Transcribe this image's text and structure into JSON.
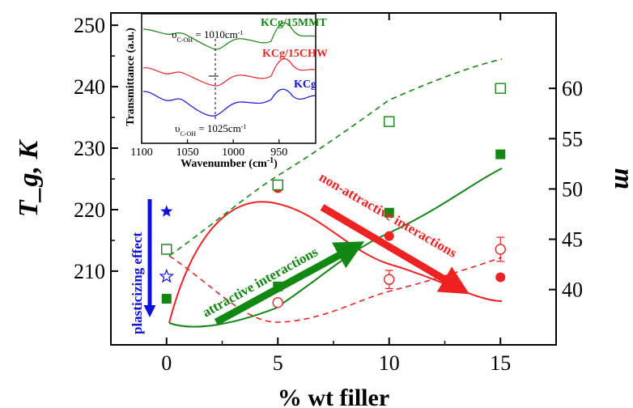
{
  "chart_data": {
    "type": "line",
    "xlabel": "% wt filler",
    "ylabel_left": "T_g, K",
    "ylabel_right": "m",
    "xlim": [
      -2.5,
      17.5
    ],
    "ylim_left": [
      198,
      252
    ],
    "ylim_right": [
      34.5,
      67.5
    ],
    "x_ticks": [
      0,
      5,
      10,
      15
    ],
    "y_ticks_left": [
      210,
      220,
      230,
      240,
      250
    ],
    "y_ticks_right": [
      40,
      45,
      50,
      55,
      60
    ],
    "colors": {
      "red": "#ee2222",
      "green": "#118811",
      "blue": "#1010dd"
    },
    "series": [
      {
        "axis": "left",
        "color": "red",
        "marker": "filled-circle",
        "x": [
          0,
          5,
          10,
          15
        ],
        "values": [
          205.5,
          223.5,
          215.7,
          209
        ]
      },
      {
        "axis": "left",
        "color": "green",
        "marker": "filled-square",
        "x": [
          0,
          5,
          10,
          15
        ],
        "values": [
          205.5,
          207.5,
          219.5,
          229
        ]
      },
      {
        "axis": "right",
        "color": "red",
        "marker": "open-circle",
        "x": [
          0,
          5,
          10,
          15
        ],
        "values": [
          44,
          38.7,
          41,
          44
        ],
        "errors": [
          0,
          0,
          0.9,
          1.2
        ]
      },
      {
        "axis": "right",
        "color": "green",
        "marker": "open-square",
        "x": [
          0,
          5,
          10,
          15
        ],
        "values": [
          44,
          50.4,
          56.7,
          60
        ],
        "errors": [
          0,
          0.4,
          0.4,
          0.2
        ]
      }
    ],
    "plasticizer_markers": [
      {
        "axis": "left",
        "shape": "filled-star",
        "color": "blue",
        "x": 0,
        "value": 219.7
      },
      {
        "axis": "right",
        "shape": "open-star",
        "color": "blue",
        "x": 0,
        "value": 41.3
      }
    ],
    "annotations": {
      "plasticizing": "plasticizing effect",
      "attractive": "attractive interactions",
      "non_attractive": "non-attractive interactions"
    },
    "inset": {
      "xlabel": "Wavenumber (cm",
      "xlabel_sup": "-1",
      "xlabel_end": ")",
      "ylabel": "Transmittance (a.u.)",
      "xlim": [
        1100,
        910
      ],
      "x_ticks": [
        1100,
        1050,
        1000,
        950
      ],
      "labels": {
        "kcg15mmt": "KCg/15MMT",
        "kcg15chw": "KCg/15CHW",
        "kcg": "KCg"
      },
      "peak_top": {
        "prefix": "υ",
        "sub": "C-OH",
        "value": " = 1010cm",
        "sup": "-1"
      },
      "peak_bottom": {
        "prefix": "υ",
        "sub": "C-OH",
        "value": " = 1025cm",
        "sup": "-1"
      }
    }
  }
}
